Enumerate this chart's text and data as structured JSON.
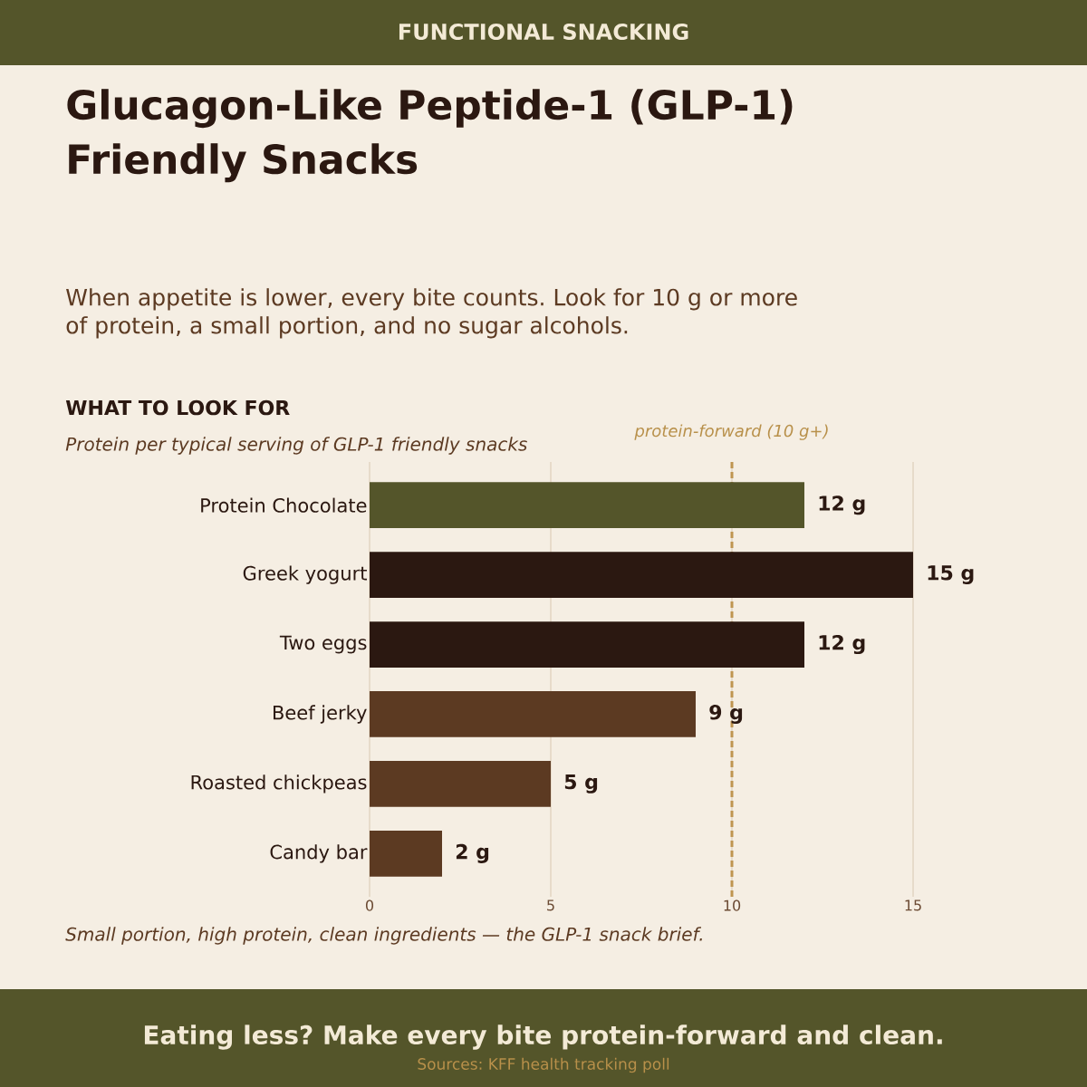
{
  "chart_data": {
    "type": "bar",
    "orientation": "horizontal",
    "title": "Glucagon-Like Peptide-1 (GLP-1) Friendly Snacks",
    "subtitle": "When appetite is lower, every bite counts. Look for 10 g or more of protein, a small portion, and no sugar alcohols.",
    "categories": [
      "Protein Chocolate",
      "Greek yogurt",
      "Two eggs",
      "Beef jerky",
      "Roasted chickpeas",
      "Candy bar"
    ],
    "values": [
      12,
      15,
      12,
      9,
      5,
      2
    ],
    "colors": [
      "#54552a",
      "#2b1811",
      "#2b1811",
      "#5c3a22",
      "#5c3a22",
      "#5c3a22"
    ],
    "value_labels": [
      "12 g",
      "15 g",
      "12 g",
      "9 g",
      "5 g",
      "2 g"
    ],
    "xlim": [
      0,
      15
    ],
    "xticks": [
      0,
      5,
      10,
      15
    ],
    "grid": "x",
    "ref_lines": [
      {
        "axis": "x",
        "value": 10,
        "label": "protein-forward (10 g+)",
        "color": "#bf9550",
        "line_style": "dashed"
      }
    ],
    "annotations": [
      "FUNCTIONAL SNACKING",
      "WHAT TO LOOK FOR",
      "Protein per typical serving of GLP-1 friendly snacks",
      "Small portion, high protein, clean ingredients — the GLP-1 snack brief.",
      "Eating less? Make every bite protein-forward and clean.",
      "Sources: KFF health tracking poll"
    ]
  }
}
